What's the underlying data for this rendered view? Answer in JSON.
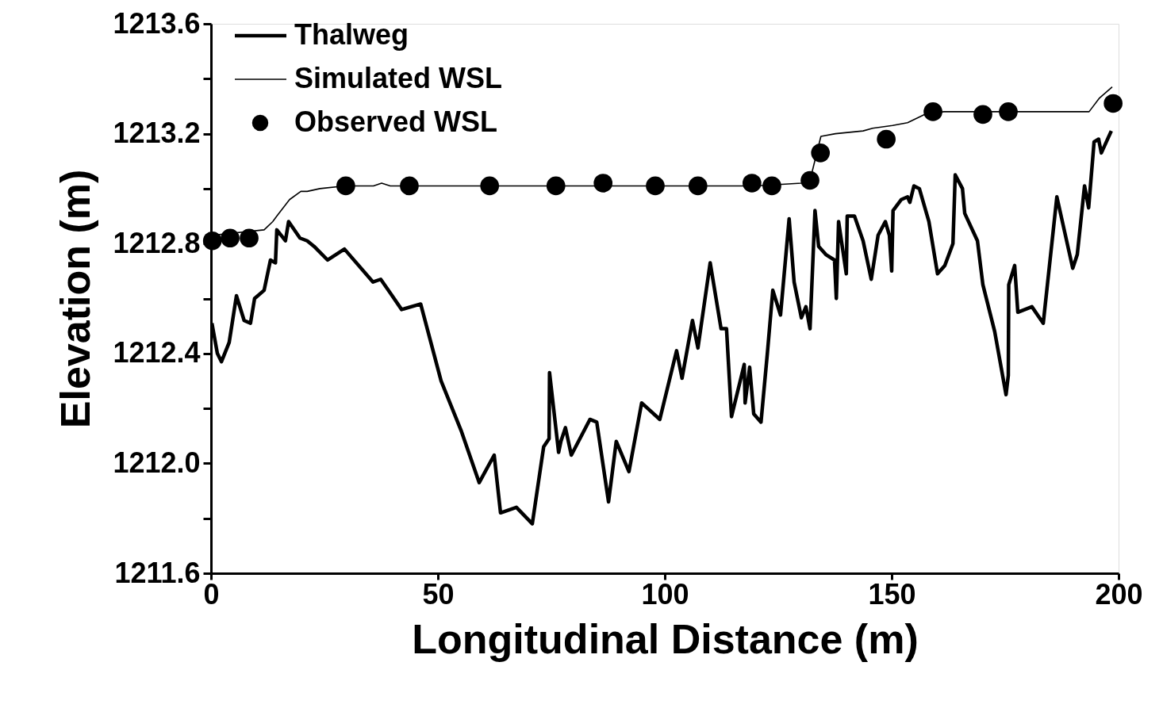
{
  "chart_data": {
    "type": "line",
    "xlabel": "Longitudinal Distance (m)",
    "ylabel": "Elevation (m)",
    "xlim": [
      0,
      200
    ],
    "xticks": [
      0,
      50,
      100,
      150,
      200
    ],
    "ylim": [
      1211.6,
      1213.6
    ],
    "yticks": [
      {
        "value": 1211.6,
        "label": "1211.6"
      },
      {
        "value": 1211.8,
        "label": null
      },
      {
        "value": 1212.0,
        "label": "1212.0"
      },
      {
        "value": 1212.2,
        "label": null
      },
      {
        "value": 1212.4,
        "label": "1212.4"
      },
      {
        "value": 1212.6,
        "label": null
      },
      {
        "value": 1212.8,
        "label": "1212.8"
      },
      {
        "value": 1213.0,
        "label": null
      },
      {
        "value": 1213.2,
        "label": "1213.2"
      },
      {
        "value": 1213.4,
        "label": null
      },
      {
        "value": 1213.6,
        "label": "1213.6"
      }
    ],
    "grid": false,
    "legend": "top left",
    "series": [
      {
        "name": "Thalweg",
        "color": "#000000",
        "line_style": "solid",
        "x": [
          0.2,
          1.4,
          2.3,
          4.0,
          5.6,
          7.3,
          8.7,
          9.6,
          11.7,
          13.1,
          14.2,
          14.5,
          16.4,
          17.1,
          19.6,
          21.2,
          22.7,
          25.7,
          29.4,
          35.7,
          37.4,
          39.5,
          42.0,
          46.2,
          50.7,
          55.1,
          59.1,
          62.4,
          63.8,
          67.3,
          70.8,
          73.3,
          74.5,
          74.6,
          76.6,
          77.1,
          78.1,
          79.4,
          83.5,
          85.0,
          87.6,
          89.3,
          92.1,
          94.9,
          98.9,
          102.6,
          103.8,
          106.1,
          107.3,
          110.0,
          112.4,
          113.6,
          114.7,
          117.5,
          117.7,
          118.7,
          119.6,
          121.2,
          122.6,
          123.8,
          125.5,
          127.4,
          128.5,
          130.1,
          131.1,
          132.0,
          133.1,
          133.9,
          135.5,
          137.4,
          137.8,
          138.3,
          140.0,
          140.2,
          141.8,
          143.7,
          145.5,
          147.0,
          148.6,
          149.5,
          150.0,
          150.3,
          152.1,
          153.5,
          154.0,
          154.9,
          156.1,
          158.2,
          160.1,
          161.7,
          163.5,
          164.0,
          165.6,
          166.1,
          168.9,
          170.1,
          172.7,
          175.2,
          175.7,
          175.8,
          177.1,
          177.8,
          180.9,
          183.4,
          186.4,
          189.9,
          190.9,
          192.5,
          193.4,
          194.6,
          195.6,
          196.2,
          198.4
        ],
        "values": [
          1212.51,
          1212.4,
          1212.37,
          1212.44,
          1212.61,
          1212.52,
          1212.51,
          1212.6,
          1212.63,
          1212.74,
          1212.73,
          1212.85,
          1212.81,
          1212.88,
          1212.82,
          1212.81,
          1212.79,
          1212.74,
          1212.78,
          1212.66,
          1212.67,
          1212.62,
          1212.56,
          1212.58,
          1212.3,
          1212.12,
          1211.93,
          1212.03,
          1211.82,
          1211.84,
          1211.78,
          1212.06,
          1212.09,
          1212.33,
          1212.04,
          1212.08,
          1212.13,
          1212.03,
          1212.16,
          1212.15,
          1211.86,
          1212.08,
          1211.97,
          1212.22,
          1212.16,
          1212.41,
          1212.31,
          1212.52,
          1212.42,
          1212.73,
          1212.49,
          1212.49,
          1212.17,
          1212.36,
          1212.22,
          1212.35,
          1212.18,
          1212.15,
          1212.4,
          1212.63,
          1212.54,
          1212.89,
          1212.66,
          1212.53,
          1212.57,
          1212.49,
          1212.92,
          1212.79,
          1212.76,
          1212.74,
          1212.6,
          1212.88,
          1212.69,
          1212.9,
          1212.9,
          1212.81,
          1212.67,
          1212.83,
          1212.88,
          1212.83,
          1212.7,
          1212.92,
          1212.96,
          1212.97,
          1212.95,
          1213.01,
          1213.0,
          1212.88,
          1212.69,
          1212.72,
          1212.8,
          1213.05,
          1213.0,
          1212.91,
          1212.81,
          1212.65,
          1212.48,
          1212.25,
          1212.32,
          1212.65,
          1212.72,
          1212.55,
          1212.57,
          1212.51,
          1212.97,
          1212.71,
          1212.76,
          1213.01,
          1212.93,
          1213.17,
          1213.18,
          1213.13,
          1213.21
        ]
      },
      {
        "name": "Simulated WSL",
        "color": "#000000",
        "line_style": "solid",
        "x": [
          0.2,
          11.7,
          13.6,
          14.5,
          17.3,
          19.8,
          21.2,
          24.0,
          29.5,
          35.8,
          37.6,
          39.5,
          45.1,
          67.7,
          80.0,
          90.0,
          100.0,
          110.0,
          120.0,
          130.1,
          132.0,
          134.4,
          137.6,
          143.7,
          145.8,
          150.2,
          153.5,
          157.3,
          161.5,
          193.5,
          195.8,
          198.6
        ],
        "values": [
          1212.83,
          1212.85,
          1212.88,
          1212.9,
          1212.96,
          1212.99,
          1212.99,
          1213.0,
          1213.01,
          1213.01,
          1213.02,
          1213.01,
          1213.01,
          1213.01,
          1213.01,
          1213.01,
          1213.01,
          1213.01,
          1213.01,
          1213.02,
          1213.03,
          1213.19,
          1213.2,
          1213.21,
          1213.22,
          1213.23,
          1213.24,
          1213.27,
          1213.28,
          1213.28,
          1213.33,
          1213.37
        ]
      },
      {
        "name": "Observed WSL",
        "type": "scatter",
        "color": "#000000",
        "marker": "circle",
        "x": [
          0.3,
          4.2,
          8.4,
          29.7,
          43.7,
          61.4,
          76.0,
          86.4,
          97.9,
          107.3,
          119.2,
          123.6,
          132.0,
          134.3,
          148.8,
          159.1,
          170.1,
          175.7,
          198.8
        ],
        "values": [
          1212.81,
          1212.82,
          1212.82,
          1213.01,
          1213.01,
          1213.01,
          1213.01,
          1213.02,
          1213.01,
          1213.01,
          1213.02,
          1213.01,
          1213.03,
          1213.13,
          1213.18,
          1213.28,
          1213.27,
          1213.28,
          1213.31
        ]
      }
    ]
  }
}
